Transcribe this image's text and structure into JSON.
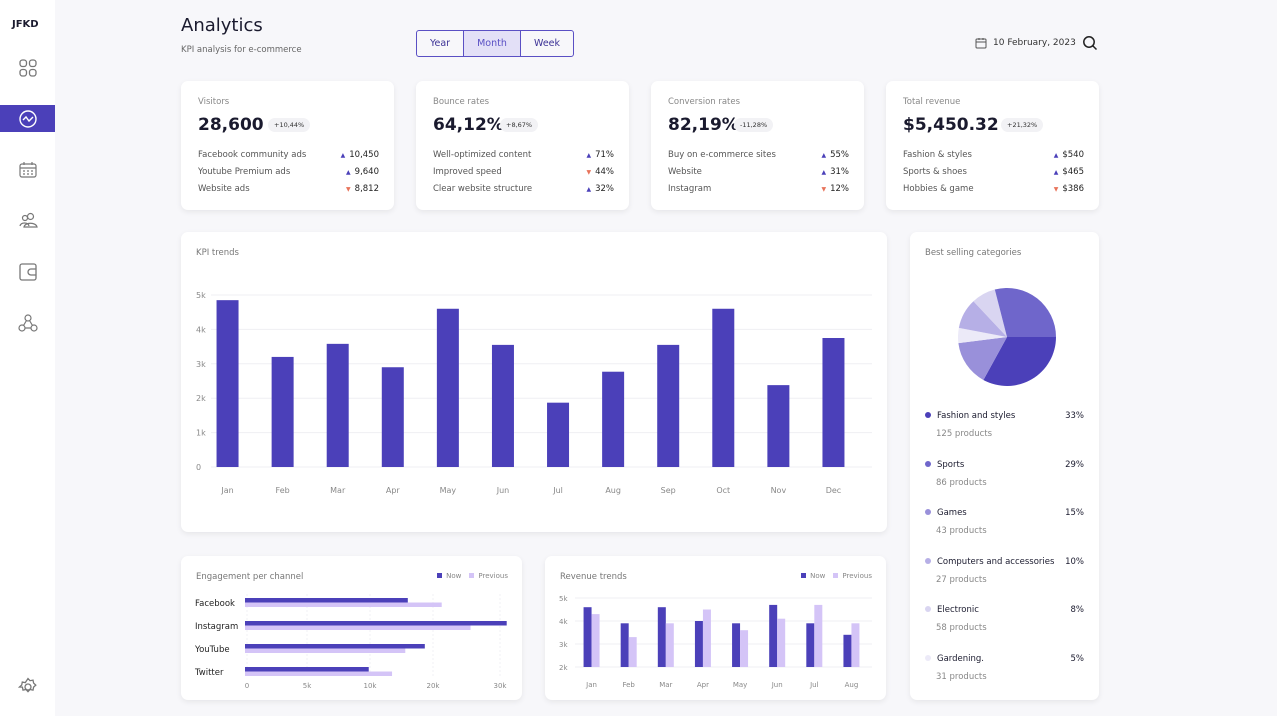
{
  "sidebar": {
    "logo": "JFKD",
    "items": [
      {
        "name": "dashboard",
        "icon": "grid-icon"
      },
      {
        "name": "analytics",
        "icon": "trend-icon",
        "active": true
      },
      {
        "name": "calendar",
        "icon": "calendar-icon"
      },
      {
        "name": "users",
        "icon": "users-icon"
      },
      {
        "name": "wallet",
        "icon": "wallet-icon"
      },
      {
        "name": "network",
        "icon": "network-icon"
      }
    ],
    "settings_icon": "gear-icon"
  },
  "header": {
    "title": "Analytics",
    "subtitle": "KPI analysis for  e-commerce",
    "periods": [
      "Year",
      "Month",
      "Week"
    ],
    "selected_period": "Month",
    "date": "10 February, 2023"
  },
  "kpis": [
    {
      "label": "Visitors",
      "value": "28,600",
      "change": "+10,44%",
      "rows": [
        {
          "label": "Facebook community ads",
          "value": "10,450",
          "trend": "up"
        },
        {
          "label": "Youtube Premium ads",
          "value": "9,640",
          "trend": "up"
        },
        {
          "label": "Website ads",
          "value": "8,812",
          "trend": "down"
        }
      ]
    },
    {
      "label": "Bounce rates",
      "value": "64,12%",
      "change": "+8,67%",
      "rows": [
        {
          "label": "Well-optimized content",
          "value": "71%",
          "trend": "up"
        },
        {
          "label": "Improved speed",
          "value": "44%",
          "trend": "down"
        },
        {
          "label": "Clear website structure",
          "value": "32%",
          "trend": "up"
        }
      ]
    },
    {
      "label": "Conversion rates",
      "value": "82,19%",
      "change": "-11,28%",
      "rows": [
        {
          "label": "Buy on e-commerce sites",
          "value": "55%",
          "trend": "up"
        },
        {
          "label": "Website",
          "value": "31%",
          "trend": "up"
        },
        {
          "label": "Instagram",
          "value": "12%",
          "trend": "down"
        }
      ]
    },
    {
      "label": "Total revenue",
      "value": "$5,450.32",
      "change": "+21,32%",
      "rows": [
        {
          "label": "Fashion & styles",
          "value": "$540",
          "trend": "up"
        },
        {
          "label": "Sports & shoes",
          "value": "$465",
          "trend": "up"
        },
        {
          "label": "Hobbies & game",
          "value": "$386",
          "trend": "down"
        }
      ]
    }
  ],
  "colors": {
    "accent": "#4B40B9",
    "previous": "#D4C4F7",
    "down": "#E8735A"
  },
  "chart_data": [
    {
      "type": "bar",
      "title": "KPI trends",
      "categories": [
        "Jan",
        "Feb",
        "Mar",
        "Apr",
        "May",
        "Jun",
        "Jul",
        "Aug",
        "Sep",
        "Oct",
        "Nov",
        "Dec"
      ],
      "values": [
        4850,
        3200,
        3580,
        2900,
        4600,
        3550,
        1870,
        2770,
        3550,
        4600,
        2380,
        3750
      ],
      "ylim": [
        0,
        5000
      ],
      "yticks": [
        "0",
        "1k",
        "2k",
        "3k",
        "4k",
        "5k"
      ],
      "grid": true
    },
    {
      "type": "bar",
      "orientation": "horizontal",
      "title": "Engagement per channel",
      "categories": [
        "Facebook",
        "Instagram",
        "YouTube",
        "Twitter"
      ],
      "series": [
        {
          "name": "Now",
          "values": [
            16000,
            31000,
            18700,
            9900
          ]
        },
        {
          "name": "Previous",
          "values": [
            21300,
            25600,
            15600,
            13500
          ]
        }
      ],
      "xticks": [
        0,
        5000,
        10000,
        20000,
        30000
      ],
      "xtick_labels": [
        "0",
        "5k",
        "10k",
        "20k",
        "30k"
      ],
      "legend": "top-right"
    },
    {
      "type": "bar",
      "title": "Revenue trends",
      "categories": [
        "Jan",
        "Feb",
        "Mar",
        "Apr",
        "May",
        "Jun",
        "Jul",
        "Aug"
      ],
      "series": [
        {
          "name": "Now",
          "values": [
            4600,
            3900,
            4600,
            4000,
            3900,
            4700,
            3900,
            3400
          ]
        },
        {
          "name": "Previous",
          "values": [
            4300,
            3300,
            3900,
            4500,
            3600,
            4100,
            4700,
            3900
          ]
        }
      ],
      "ylim": [
        2000,
        5000
      ],
      "yticks": [
        "2k",
        "3k",
        "4k",
        "5k"
      ],
      "legend": "top-right",
      "grid": true
    },
    {
      "type": "pie",
      "title": "Best selling categories",
      "categories": [
        {
          "name": "Fashion and styles",
          "percent": 33,
          "products": "125 products",
          "percent_label": "33%",
          "color": "#4B40B9"
        },
        {
          "name": "Sports",
          "percent": 29,
          "products": "86 products",
          "percent_label": "29%",
          "color": "#6F66CB"
        },
        {
          "name": "Games",
          "percent": 15,
          "products": "43 products",
          "percent_label": "15%",
          "color": "#9990DA"
        },
        {
          "name": "Computers and accessories",
          "percent": 10,
          "products": "27 products",
          "percent_label": "10%",
          "color": "#B6AFE6"
        },
        {
          "name": "Electronic",
          "percent": 8,
          "products": "58 products",
          "percent_label": "8%",
          "color": "#D9D5F1"
        },
        {
          "name": "Gardening.",
          "percent": 5,
          "products": "31 products",
          "percent_label": "5%",
          "color": "#ECEAF8"
        }
      ]
    }
  ]
}
